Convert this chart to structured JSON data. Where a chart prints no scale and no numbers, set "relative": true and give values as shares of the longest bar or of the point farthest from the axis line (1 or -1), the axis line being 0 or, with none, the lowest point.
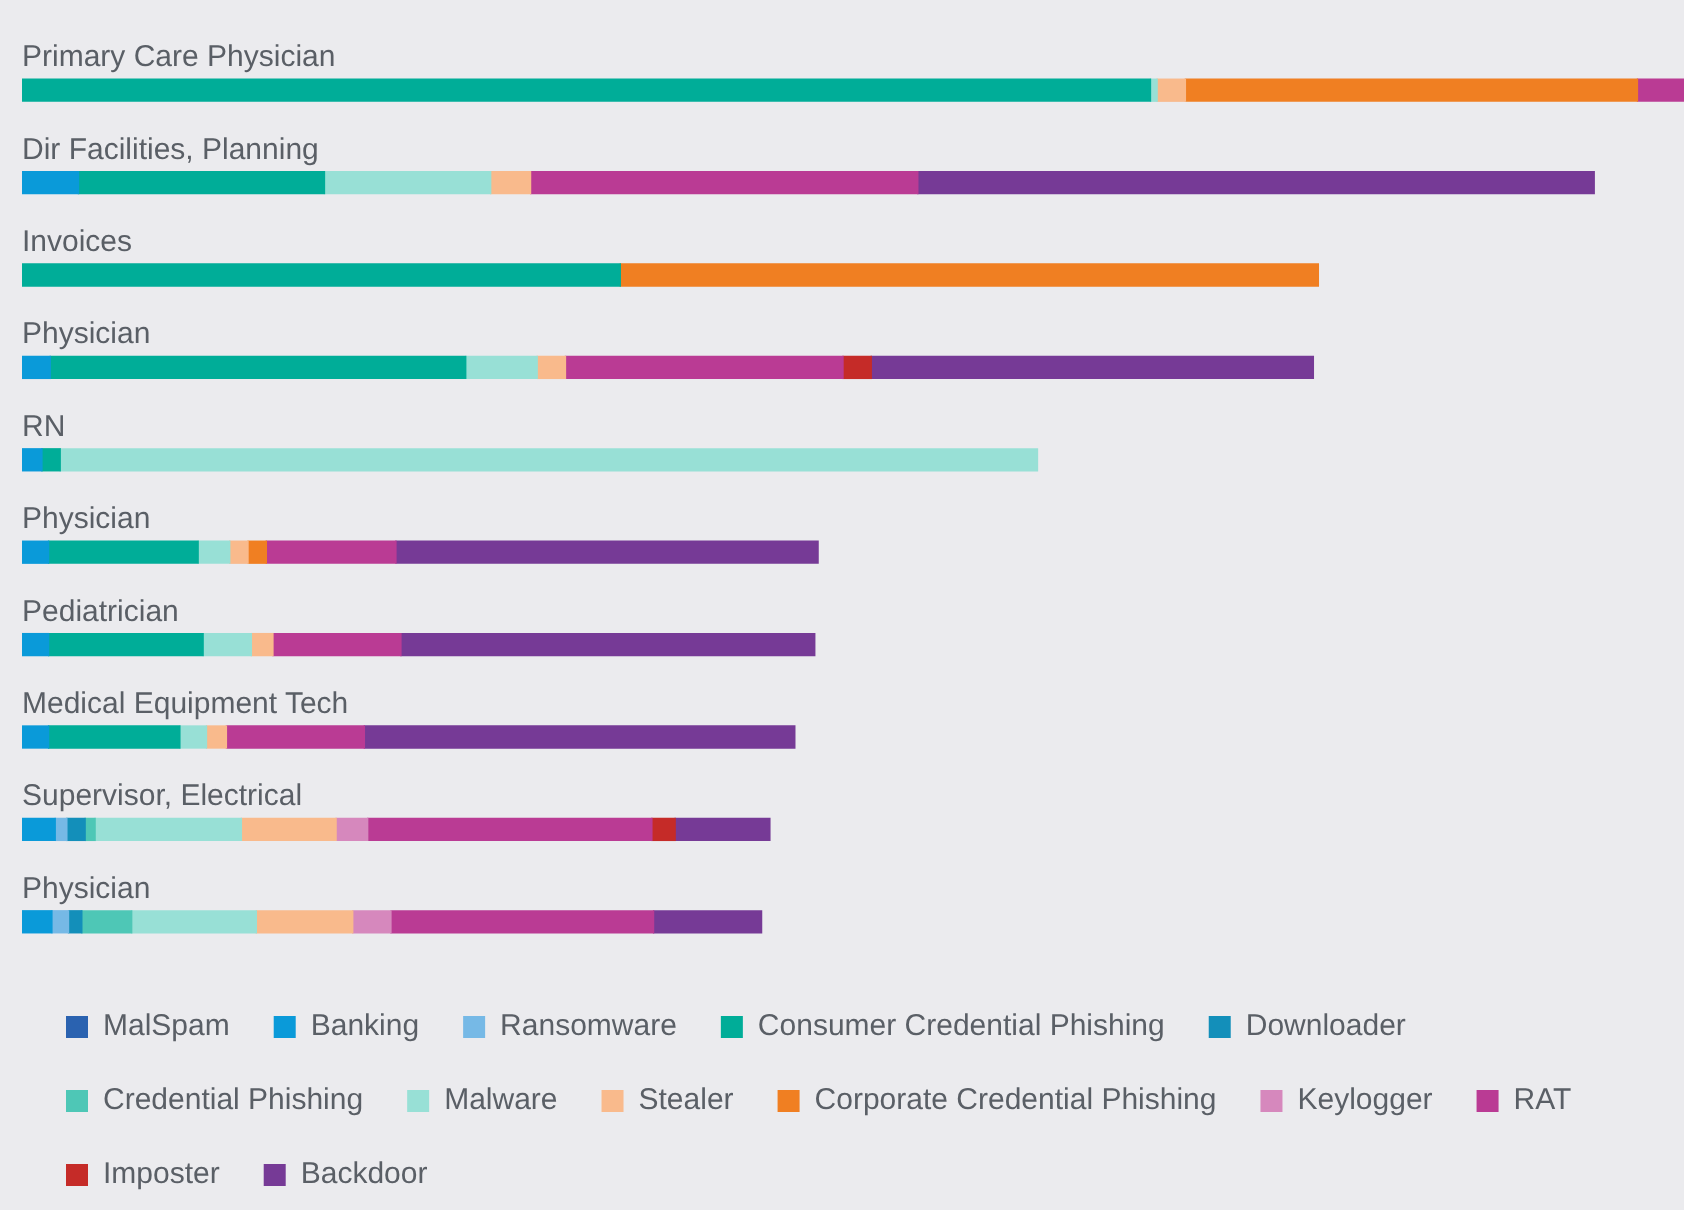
{
  "chart_data": {
    "type": "bar",
    "orientation": "horizontal",
    "stacked": true,
    "relative": true,
    "legend": "bottom left",
    "categories": [
      "Primary Care Physician",
      "Dir Facilities, Planning",
      "Invoices",
      "Physician",
      "RN",
      "Physician",
      "Pediatrician",
      "Medical Equipment Tech",
      "Supervisor, Electrical",
      "Physician"
    ],
    "series": [
      {
        "name": "MalSpam",
        "color": "#2a62b0",
        "values": [
          null,
          null,
          null,
          null,
          null,
          null,
          null,
          null,
          null,
          null
        ]
      },
      {
        "name": "Banking",
        "color": "#0a9ad9",
        "values": [
          null,
          0.034,
          null,
          0.017,
          0.012,
          0.016,
          0.016,
          0.016,
          0.02,
          0.018
        ]
      },
      {
        "name": "Ransomware",
        "color": "#76b9e6",
        "values": [
          null,
          null,
          null,
          null,
          null,
          null,
          null,
          null,
          0.007,
          0.01
        ]
      },
      {
        "name": "Consumer Credential Phishing",
        "color": "#00ad98",
        "values": [
          0.679,
          0.148,
          0.36,
          0.25,
          0.011,
          0.09,
          0.093,
          0.079,
          null,
          null
        ]
      },
      {
        "name": "Downloader",
        "color": "#138fba",
        "values": [
          null,
          null,
          null,
          null,
          null,
          null,
          null,
          null,
          0.011,
          0.008
        ]
      },
      {
        "name": "Credential Phishing",
        "color": "#4ec7b6",
        "values": [
          null,
          null,
          null,
          null,
          null,
          null,
          null,
          null,
          0.006,
          0.03
        ]
      },
      {
        "name": "Malware",
        "color": "#98e0d6",
        "values": [
          0.004,
          0.1,
          null,
          0.043,
          0.588,
          0.019,
          0.029,
          0.016,
          0.088,
          0.075
        ]
      },
      {
        "name": "Stealer",
        "color": "#f9ba8c",
        "values": [
          0.017,
          0.024,
          null,
          0.017,
          null,
          0.011,
          0.013,
          0.012,
          0.057,
          0.058
        ]
      },
      {
        "name": "Corporate Credential Phishing",
        "color": "#f07f22",
        "values": [
          0.272,
          null,
          0.42,
          null,
          null,
          0.011,
          null,
          null,
          null,
          null
        ]
      },
      {
        "name": "Keylogger",
        "color": "#d688bd",
        "values": [
          null,
          null,
          null,
          null,
          null,
          null,
          null,
          null,
          0.019,
          0.023
        ]
      },
      {
        "name": "RAT",
        "color": "#ba3b94",
        "values": [
          0.028,
          0.233,
          null,
          0.167,
          null,
          0.078,
          0.077,
          0.083,
          0.171,
          0.158
        ]
      },
      {
        "name": "Imposter",
        "color": "#c52b28",
        "values": [
          null,
          null,
          null,
          0.017,
          null,
          null,
          null,
          null,
          0.014,
          null
        ]
      },
      {
        "name": "Backdoor",
        "color": "#763a96",
        "values": [
          null,
          0.407,
          null,
          0.266,
          null,
          0.254,
          0.249,
          0.259,
          0.057,
          0.065
        ]
      }
    ]
  }
}
